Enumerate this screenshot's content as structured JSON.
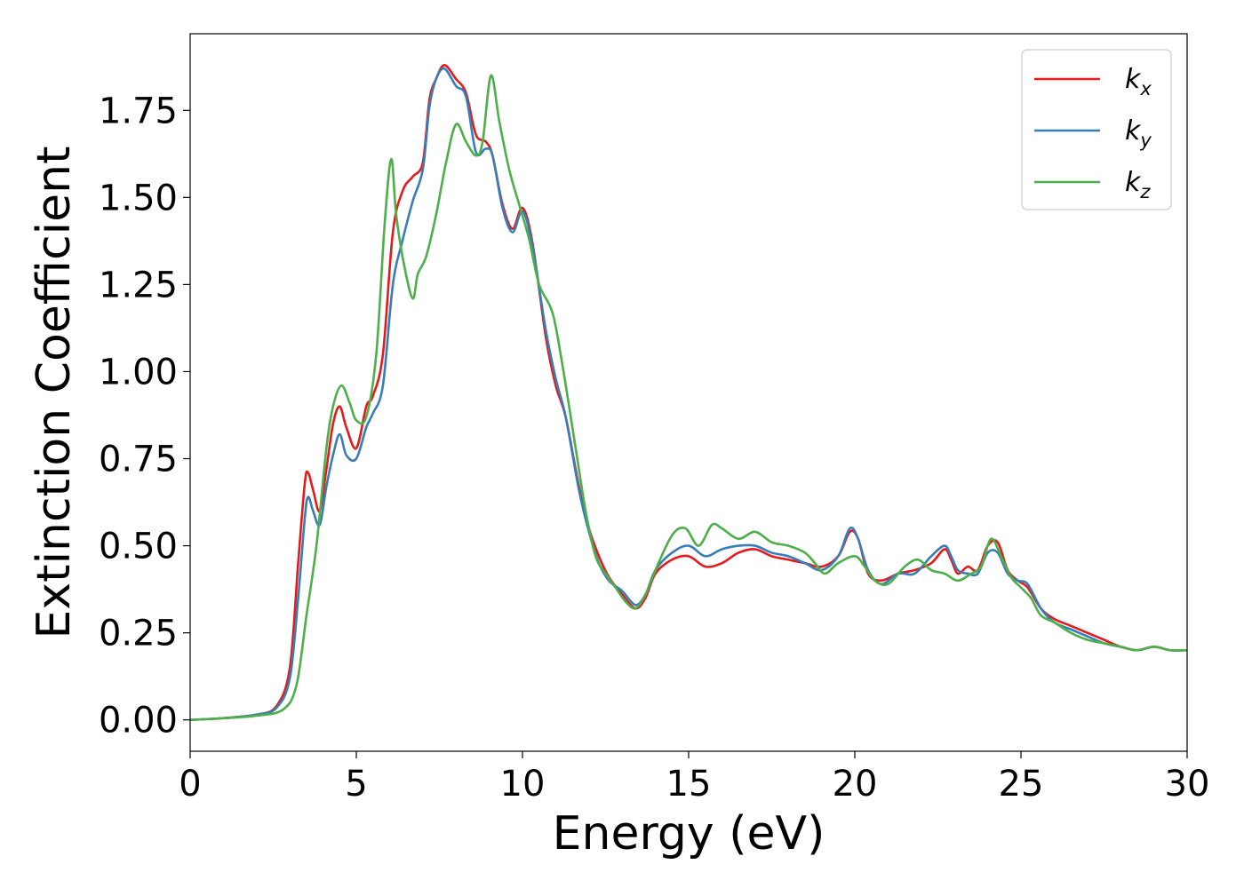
{
  "chart_data": {
    "type": "line",
    "title": "",
    "xlabel": "Energy (eV)",
    "ylabel": "Extinction Coefficient",
    "xlim": [
      0,
      30
    ],
    "ylim": [
      -0.09,
      1.97
    ],
    "xticks": [
      0,
      5,
      10,
      15,
      20,
      25,
      30
    ],
    "xtick_labels": [
      "0",
      "5",
      "10",
      "15",
      "20",
      "25",
      "30"
    ],
    "yticks": [
      0,
      0.25,
      0.5,
      0.75,
      1.0,
      1.25,
      1.5,
      1.75
    ],
    "ytick_labels": [
      "0.00",
      "0.25",
      "0.50",
      "0.75",
      "1.00",
      "1.25",
      "1.50",
      "1.75"
    ],
    "grid": false,
    "legend_position": "top-right",
    "series": [
      {
        "name": "k_x",
        "legend_base": "k",
        "legend_sub": "x",
        "color": "#e41a1c",
        "points": [
          [
            0,
            0
          ],
          [
            1,
            0.005
          ],
          [
            2,
            0.015
          ],
          [
            2.6,
            0.04
          ],
          [
            3.0,
            0.15
          ],
          [
            3.25,
            0.45
          ],
          [
            3.45,
            0.68
          ],
          [
            3.55,
            0.71
          ],
          [
            3.7,
            0.66
          ],
          [
            3.9,
            0.6
          ],
          [
            4.1,
            0.72
          ],
          [
            4.3,
            0.85
          ],
          [
            4.5,
            0.9
          ],
          [
            4.7,
            0.84
          ],
          [
            5.0,
            0.78
          ],
          [
            5.3,
            0.9
          ],
          [
            5.5,
            0.93
          ],
          [
            5.8,
            1.05
          ],
          [
            6.1,
            1.4
          ],
          [
            6.4,
            1.52
          ],
          [
            6.7,
            1.56
          ],
          [
            7.0,
            1.6
          ],
          [
            7.2,
            1.78
          ],
          [
            7.4,
            1.84
          ],
          [
            7.65,
            1.88
          ],
          [
            8.0,
            1.84
          ],
          [
            8.3,
            1.8
          ],
          [
            8.6,
            1.68
          ],
          [
            8.9,
            1.66
          ],
          [
            9.1,
            1.62
          ],
          [
            9.4,
            1.48
          ],
          [
            9.7,
            1.41
          ],
          [
            10.0,
            1.47
          ],
          [
            10.3,
            1.37
          ],
          [
            10.7,
            1.1
          ],
          [
            11.0,
            0.96
          ],
          [
            11.3,
            0.87
          ],
          [
            11.7,
            0.67
          ],
          [
            12.0,
            0.55
          ],
          [
            12.3,
            0.47
          ],
          [
            12.6,
            0.41
          ],
          [
            13.0,
            0.36
          ],
          [
            13.4,
            0.32
          ],
          [
            13.7,
            0.35
          ],
          [
            14.0,
            0.42
          ],
          [
            14.5,
            0.46
          ],
          [
            15.0,
            0.47
          ],
          [
            15.5,
            0.44
          ],
          [
            16.0,
            0.45
          ],
          [
            16.5,
            0.48
          ],
          [
            17.0,
            0.49
          ],
          [
            17.5,
            0.47
          ],
          [
            18.0,
            0.46
          ],
          [
            18.5,
            0.45
          ],
          [
            19.0,
            0.44
          ],
          [
            19.5,
            0.47
          ],
          [
            19.85,
            0.54
          ],
          [
            20.1,
            0.52
          ],
          [
            20.4,
            0.42
          ],
          [
            20.8,
            0.4
          ],
          [
            21.3,
            0.42
          ],
          [
            21.8,
            0.43
          ],
          [
            22.3,
            0.45
          ],
          [
            22.7,
            0.49
          ],
          [
            22.9,
            0.46
          ],
          [
            23.1,
            0.42
          ],
          [
            23.4,
            0.44
          ],
          [
            23.7,
            0.43
          ],
          [
            24.0,
            0.5
          ],
          [
            24.3,
            0.51
          ],
          [
            24.6,
            0.43
          ],
          [
            24.9,
            0.4
          ],
          [
            25.2,
            0.38
          ],
          [
            25.6,
            0.32
          ],
          [
            26.0,
            0.29
          ],
          [
            26.5,
            0.27
          ],
          [
            27.0,
            0.25
          ],
          [
            27.5,
            0.23
          ],
          [
            28.0,
            0.21
          ],
          [
            28.5,
            0.2
          ],
          [
            29.0,
            0.21
          ],
          [
            29.5,
            0.2
          ],
          [
            30.0,
            0.2
          ]
        ]
      },
      {
        "name": "k_y",
        "legend_base": "k",
        "legend_sub": "y",
        "color": "#377eb8",
        "points": [
          [
            0,
            0
          ],
          [
            1,
            0.005
          ],
          [
            2,
            0.015
          ],
          [
            2.6,
            0.035
          ],
          [
            3.0,
            0.12
          ],
          [
            3.25,
            0.35
          ],
          [
            3.45,
            0.58
          ],
          [
            3.55,
            0.64
          ],
          [
            3.7,
            0.6
          ],
          [
            3.9,
            0.56
          ],
          [
            4.1,
            0.67
          ],
          [
            4.3,
            0.76
          ],
          [
            4.5,
            0.82
          ],
          [
            4.7,
            0.76
          ],
          [
            5.0,
            0.75
          ],
          [
            5.3,
            0.84
          ],
          [
            5.5,
            0.88
          ],
          [
            5.8,
            0.96
          ],
          [
            6.1,
            1.25
          ],
          [
            6.4,
            1.38
          ],
          [
            6.7,
            1.49
          ],
          [
            7.0,
            1.58
          ],
          [
            7.2,
            1.76
          ],
          [
            7.4,
            1.84
          ],
          [
            7.65,
            1.87
          ],
          [
            8.0,
            1.82
          ],
          [
            8.3,
            1.79
          ],
          [
            8.6,
            1.63
          ],
          [
            8.9,
            1.64
          ],
          [
            9.1,
            1.62
          ],
          [
            9.4,
            1.47
          ],
          [
            9.7,
            1.4
          ],
          [
            10.0,
            1.46
          ],
          [
            10.3,
            1.36
          ],
          [
            10.7,
            1.12
          ],
          [
            11.0,
            0.98
          ],
          [
            11.3,
            0.87
          ],
          [
            11.7,
            0.66
          ],
          [
            12.0,
            0.54
          ],
          [
            12.3,
            0.45
          ],
          [
            12.6,
            0.4
          ],
          [
            13.0,
            0.37
          ],
          [
            13.4,
            0.33
          ],
          [
            13.7,
            0.36
          ],
          [
            14.0,
            0.43
          ],
          [
            14.5,
            0.48
          ],
          [
            15.0,
            0.5
          ],
          [
            15.5,
            0.47
          ],
          [
            16.0,
            0.49
          ],
          [
            16.5,
            0.5
          ],
          [
            17.0,
            0.5
          ],
          [
            17.5,
            0.48
          ],
          [
            18.0,
            0.47
          ],
          [
            18.5,
            0.45
          ],
          [
            19.0,
            0.43
          ],
          [
            19.5,
            0.47
          ],
          [
            19.85,
            0.55
          ],
          [
            20.1,
            0.52
          ],
          [
            20.4,
            0.43
          ],
          [
            20.8,
            0.39
          ],
          [
            21.3,
            0.42
          ],
          [
            21.8,
            0.42
          ],
          [
            22.3,
            0.47
          ],
          [
            22.7,
            0.5
          ],
          [
            22.9,
            0.47
          ],
          [
            23.1,
            0.43
          ],
          [
            23.4,
            0.42
          ],
          [
            23.7,
            0.42
          ],
          [
            24.0,
            0.48
          ],
          [
            24.3,
            0.48
          ],
          [
            24.6,
            0.42
          ],
          [
            24.9,
            0.4
          ],
          [
            25.2,
            0.39
          ],
          [
            25.6,
            0.32
          ],
          [
            26.0,
            0.28
          ],
          [
            26.5,
            0.26
          ],
          [
            27.0,
            0.24
          ],
          [
            27.5,
            0.22
          ],
          [
            28.0,
            0.21
          ],
          [
            28.5,
            0.2
          ],
          [
            29.0,
            0.21
          ],
          [
            29.5,
            0.2
          ],
          [
            30.0,
            0.2
          ]
        ]
      },
      {
        "name": "k_z",
        "legend_base": "k",
        "legend_sub": "z",
        "color": "#4daf4a",
        "points": [
          [
            0,
            0
          ],
          [
            1,
            0.005
          ],
          [
            2,
            0.012
          ],
          [
            2.8,
            0.03
          ],
          [
            3.2,
            0.1
          ],
          [
            3.5,
            0.3
          ],
          [
            3.8,
            0.5
          ],
          [
            4.1,
            0.78
          ],
          [
            4.3,
            0.9
          ],
          [
            4.55,
            0.96
          ],
          [
            4.8,
            0.91
          ],
          [
            5.0,
            0.86
          ],
          [
            5.3,
            0.87
          ],
          [
            5.6,
            1.05
          ],
          [
            5.85,
            1.42
          ],
          [
            6.05,
            1.61
          ],
          [
            6.2,
            1.45
          ],
          [
            6.45,
            1.3
          ],
          [
            6.7,
            1.21
          ],
          [
            6.85,
            1.28
          ],
          [
            7.1,
            1.33
          ],
          [
            7.4,
            1.45
          ],
          [
            7.7,
            1.6
          ],
          [
            8.0,
            1.71
          ],
          [
            8.3,
            1.66
          ],
          [
            8.6,
            1.62
          ],
          [
            8.8,
            1.66
          ],
          [
            9.05,
            1.85
          ],
          [
            9.3,
            1.72
          ],
          [
            9.6,
            1.58
          ],
          [
            9.9,
            1.48
          ],
          [
            10.2,
            1.38
          ],
          [
            10.5,
            1.25
          ],
          [
            10.9,
            1.17
          ],
          [
            11.2,
            1.02
          ],
          [
            11.6,
            0.78
          ],
          [
            11.9,
            0.6
          ],
          [
            12.2,
            0.47
          ],
          [
            12.5,
            0.42
          ],
          [
            12.8,
            0.38
          ],
          [
            13.1,
            0.34
          ],
          [
            13.4,
            0.32
          ],
          [
            13.7,
            0.36
          ],
          [
            14.0,
            0.43
          ],
          [
            14.5,
            0.53
          ],
          [
            14.9,
            0.55
          ],
          [
            15.3,
            0.5
          ],
          [
            15.7,
            0.56
          ],
          [
            16.0,
            0.55
          ],
          [
            16.5,
            0.52
          ],
          [
            17.0,
            0.54
          ],
          [
            17.5,
            0.51
          ],
          [
            18.0,
            0.5
          ],
          [
            18.5,
            0.48
          ],
          [
            18.8,
            0.45
          ],
          [
            19.1,
            0.42
          ],
          [
            19.5,
            0.45
          ],
          [
            20.0,
            0.47
          ],
          [
            20.3,
            0.44
          ],
          [
            20.6,
            0.4
          ],
          [
            21.0,
            0.39
          ],
          [
            21.5,
            0.44
          ],
          [
            21.9,
            0.46
          ],
          [
            22.3,
            0.43
          ],
          [
            22.7,
            0.42
          ],
          [
            23.1,
            0.4
          ],
          [
            23.5,
            0.42
          ],
          [
            23.8,
            0.44
          ],
          [
            24.1,
            0.52
          ],
          [
            24.4,
            0.47
          ],
          [
            24.7,
            0.41
          ],
          [
            25.0,
            0.38
          ],
          [
            25.3,
            0.35
          ],
          [
            25.6,
            0.3
          ],
          [
            26.0,
            0.28
          ],
          [
            26.5,
            0.25
          ],
          [
            27.0,
            0.23
          ],
          [
            27.5,
            0.22
          ],
          [
            28.0,
            0.21
          ],
          [
            28.5,
            0.2
          ],
          [
            29.0,
            0.21
          ],
          [
            29.5,
            0.2
          ],
          [
            30.0,
            0.2
          ]
        ]
      }
    ]
  }
}
